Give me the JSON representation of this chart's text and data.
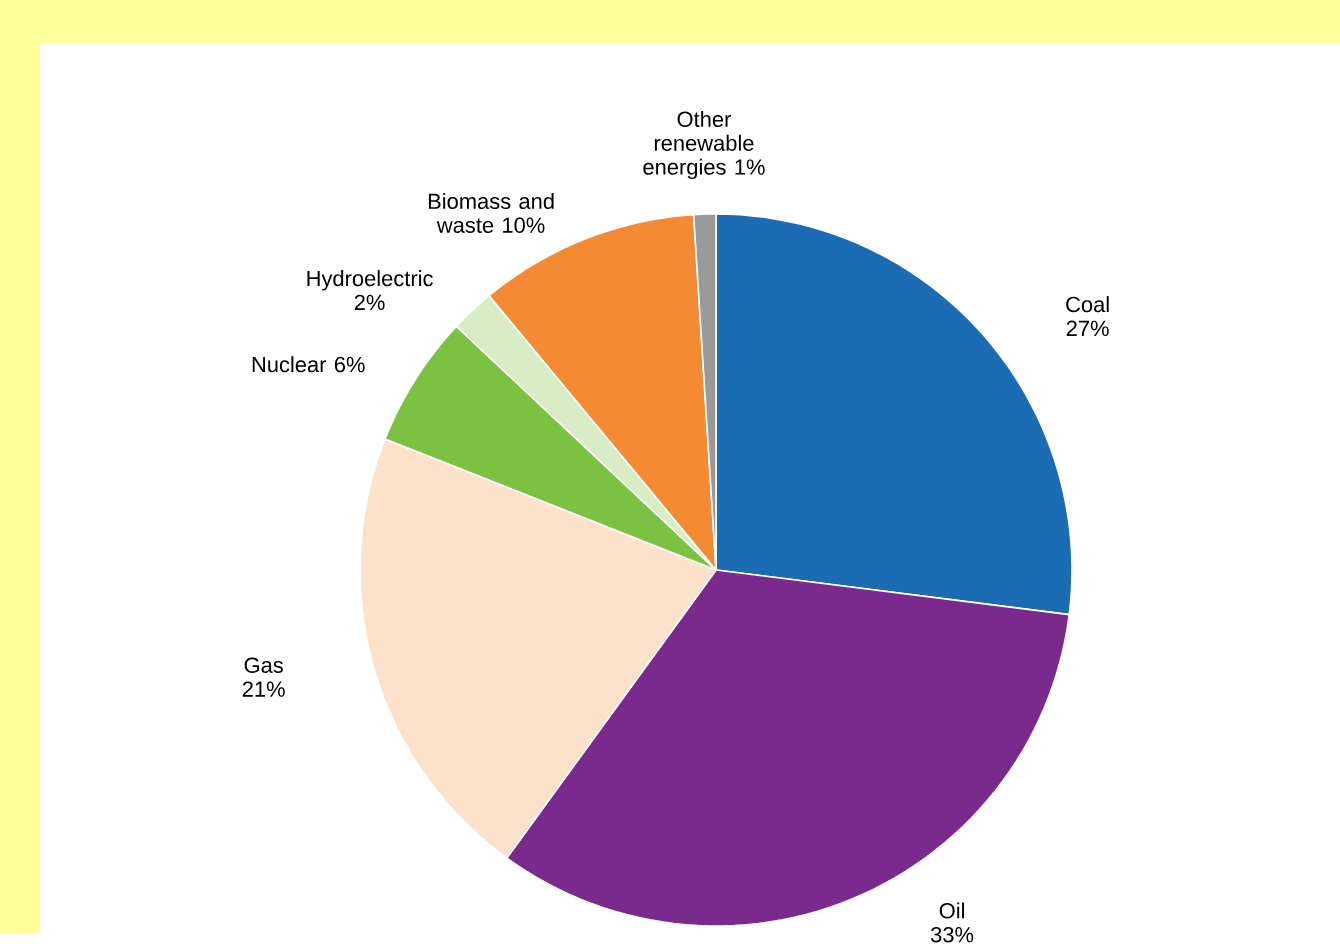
{
  "chart_data": {
    "type": "pie",
    "categories": [
      "Coal",
      "Oil",
      "Gas",
      "Nuclear",
      "Hydroelectric",
      "Biomass and waste",
      "Other renewable energies"
    ],
    "values": [
      27,
      33,
      21,
      6,
      2,
      10,
      1
    ],
    "value_labels": [
      "27%",
      "33%",
      "21%",
      "6%",
      "2%",
      "10%",
      "1%"
    ],
    "colors": [
      "#1b6cb3",
      "#7a2a8c",
      "#fde2cb",
      "#7cc242",
      "#d8ecc6",
      "#f58a34",
      "#9a9a9a"
    ]
  }
}
